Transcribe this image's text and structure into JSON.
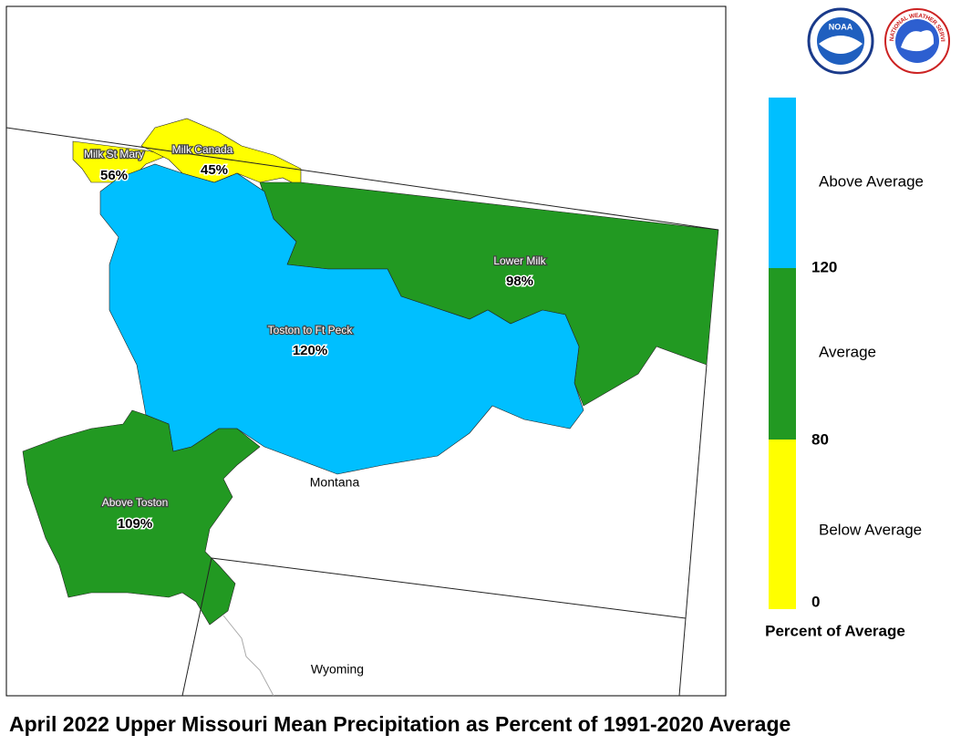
{
  "map": {
    "title": "April 2022 Upper Missouri Mean Precipitation as Percent of 1991-2020 Average",
    "regions": [
      {
        "name": "Milk St Mary",
        "percent": "56%",
        "color": "#ffff00"
      },
      {
        "name": "Milk Canada",
        "percent": "45%",
        "color": "#ffff00"
      },
      {
        "name": "Lower Milk",
        "percent": "98%",
        "color": "#229922"
      },
      {
        "name": "Toston to Ft Peck",
        "percent": "120%",
        "color": "#00bfff"
      },
      {
        "name": "Above Toston",
        "percent": "109%",
        "color": "#229922"
      }
    ],
    "states": [
      "Montana",
      "Wyoming"
    ],
    "legend": {
      "title": "Percent of Average",
      "classes": [
        {
          "label": "Above Average",
          "color": "#00bfff"
        },
        {
          "label": "Average",
          "color": "#229922"
        },
        {
          "label": "Below Average",
          "color": "#ffff00"
        }
      ],
      "ticks": [
        "120",
        "80",
        "0"
      ]
    },
    "logos": [
      "NOAA",
      "NATIONAL WEATHER SERVICE"
    ]
  }
}
